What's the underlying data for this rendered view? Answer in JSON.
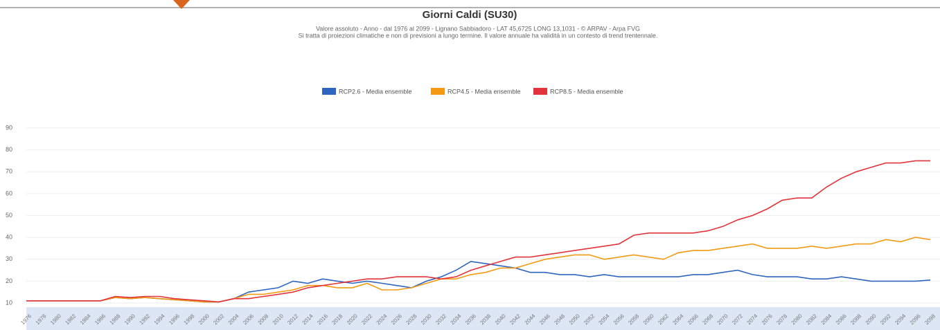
{
  "chart_data": {
    "type": "line",
    "title": "Giorni Caldi (SU30)",
    "subtitle": [
      "Valore assoluto  -  Anno  -  dal 1976 al 2099 - Lignano Sabbiadoro - LAT 45,6725 LONG 13,1031  -  © ARPAV - Arpa FVG",
      "Si tratta di proiezioni climatiche e non di previsioni a lungo termine. Il valore annuale ha validità in un contesto di trend trentennale."
    ],
    "x": [
      1976,
      1978,
      1980,
      1982,
      1984,
      1986,
      1988,
      1990,
      1992,
      1994,
      1996,
      1998,
      2000,
      2002,
      2004,
      2006,
      2008,
      2010,
      2012,
      2014,
      2016,
      2018,
      2020,
      2022,
      2024,
      2026,
      2028,
      2030,
      2032,
      2034,
      2036,
      2038,
      2040,
      2042,
      2044,
      2046,
      2048,
      2050,
      2052,
      2054,
      2056,
      2058,
      2060,
      2062,
      2064,
      2066,
      2068,
      2070,
      2072,
      2074,
      2076,
      2078,
      2080,
      2082,
      2084,
      2086,
      2088,
      2090,
      2092,
      2094,
      2096,
      2098
    ],
    "xlim": [
      1976,
      2098
    ],
    "ylim": [
      10,
      90
    ],
    "yticks": [
      10,
      20,
      30,
      40,
      50,
      60,
      70,
      80,
      90
    ],
    "grid": true,
    "series": [
      {
        "name": "RCP2.6 - Media ensemble",
        "color": "#2e65c0",
        "values": [
          11,
          11,
          11,
          11,
          11,
          11,
          12.5,
          12,
          12.5,
          12,
          11.5,
          11,
          10.5,
          10.5,
          12,
          15,
          16,
          17,
          20,
          19,
          21,
          20,
          19,
          20,
          19,
          18,
          17,
          20,
          22,
          25,
          29,
          28,
          27,
          26,
          24,
          24,
          23,
          23,
          22,
          23,
          22,
          22,
          22,
          22,
          22,
          23,
          23,
          24,
          25,
          23,
          22,
          22,
          22,
          21,
          21,
          22,
          21,
          20,
          20,
          20,
          20,
          20.5
        ]
      },
      {
        "name": "RCP4.5 - Media ensemble",
        "color": "#f29a12",
        "values": [
          11,
          11,
          11,
          11,
          11,
          11,
          12.5,
          12,
          12.5,
          12,
          11.5,
          11,
          10.5,
          10.5,
          12,
          14,
          14,
          15,
          16,
          18,
          18,
          17,
          17,
          19,
          16,
          16,
          17,
          19,
          21,
          21,
          23,
          24,
          26,
          26,
          28,
          30,
          31,
          32,
          32,
          30,
          31,
          32,
          31,
          30,
          33,
          34,
          34,
          35,
          36,
          37,
          35,
          35,
          35,
          36,
          35,
          36,
          37,
          37,
          39,
          38,
          40,
          39
        ]
      },
      {
        "name": "RCP8.5 - Media ensemble",
        "color": "#e3333a",
        "values": [
          11,
          11,
          11,
          11,
          11,
          11,
          13,
          12.5,
          13,
          13,
          12,
          11.5,
          11,
          10.5,
          12,
          12,
          13,
          14,
          15,
          17,
          18,
          19,
          20,
          21,
          21,
          22,
          22,
          22,
          21,
          22,
          25,
          27,
          29,
          31,
          31,
          32,
          33,
          34,
          35,
          36,
          37,
          41,
          42,
          42,
          42,
          42,
          43,
          45,
          48,
          50,
          53,
          57,
          58,
          58,
          63,
          67,
          70,
          72,
          74,
          74,
          75,
          75
        ]
      }
    ]
  }
}
